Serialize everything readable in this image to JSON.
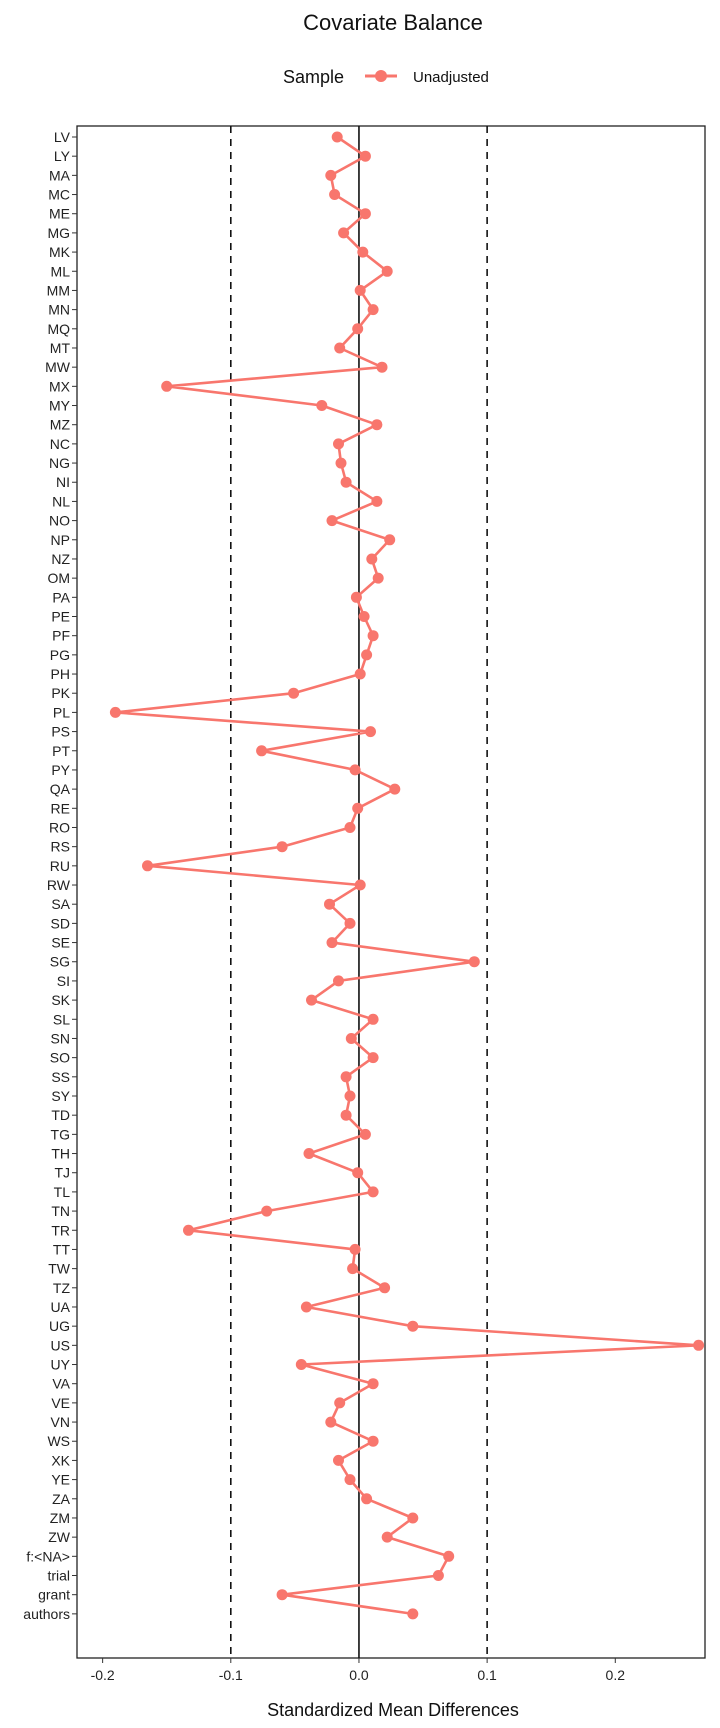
{
  "chart_data": {
    "type": "line",
    "title": "Covariate Balance",
    "xlabel": "Standardized Mean Differences",
    "ylabel": "",
    "xlim": [
      -0.22,
      0.27
    ],
    "x_ticks": [
      -0.2,
      -0.1,
      0.0,
      0.1,
      0.2
    ],
    "x_tick_labels": [
      "-0.2",
      "-0.1",
      "0.0",
      "0.1",
      "0.2"
    ],
    "reference_lines": [
      {
        "x": -0.1,
        "style": "dashed"
      },
      {
        "x": 0.0,
        "style": "solid"
      },
      {
        "x": 0.1,
        "style": "dashed"
      }
    ],
    "legend": {
      "title": "Sample",
      "position": "top"
    },
    "categories": [
      "LV",
      "LY",
      "MA",
      "MC",
      "ME",
      "MG",
      "MK",
      "ML",
      "MM",
      "MN",
      "MQ",
      "MT",
      "MW",
      "MX",
      "MY",
      "MZ",
      "NC",
      "NG",
      "NI",
      "NL",
      "NO",
      "NP",
      "NZ",
      "OM",
      "PA",
      "PE",
      "PF",
      "PG",
      "PH",
      "PK",
      "PL",
      "PS",
      "PT",
      "PY",
      "QA",
      "RE",
      "RO",
      "RS",
      "RU",
      "RW",
      "SA",
      "SD",
      "SE",
      "SG",
      "SI",
      "SK",
      "SL",
      "SN",
      "SO",
      "SS",
      "SY",
      "TD",
      "TG",
      "TH",
      "TJ",
      "TL",
      "TN",
      "TR",
      "TT",
      "TW",
      "TZ",
      "UA",
      "UG",
      "US",
      "UY",
      "VA",
      "VE",
      "VN",
      "WS",
      "XK",
      "YE",
      "ZA",
      "ZM",
      "ZW",
      "f:<NA>",
      "trial",
      "grant",
      "authors"
    ],
    "series": [
      {
        "name": "Unadjusted",
        "color": "#F8766D",
        "values": [
          -0.017,
          0.005,
          -0.022,
          -0.019,
          0.005,
          -0.012,
          0.003,
          0.022,
          0.001,
          0.011,
          -0.001,
          -0.015,
          0.018,
          -0.15,
          -0.029,
          0.014,
          -0.016,
          -0.014,
          -0.01,
          0.014,
          -0.021,
          0.024,
          0.01,
          0.015,
          -0.002,
          0.004,
          0.011,
          0.006,
          0.001,
          -0.051,
          -0.19,
          0.009,
          -0.076,
          -0.003,
          0.028,
          -0.001,
          -0.007,
          -0.06,
          -0.165,
          0.001,
          -0.023,
          -0.007,
          -0.021,
          0.09,
          -0.016,
          -0.037,
          0.011,
          -0.006,
          0.011,
          -0.01,
          -0.007,
          -0.01,
          0.005,
          -0.039,
          -0.001,
          0.011,
          -0.072,
          -0.133,
          -0.003,
          -0.005,
          0.02,
          -0.041,
          0.042,
          0.265,
          -0.045,
          0.011,
          -0.015,
          -0.022,
          0.011,
          -0.016,
          -0.007,
          0.006,
          0.042,
          0.022,
          0.07,
          0.062,
          -0.06,
          0.042
        ]
      }
    ]
  }
}
